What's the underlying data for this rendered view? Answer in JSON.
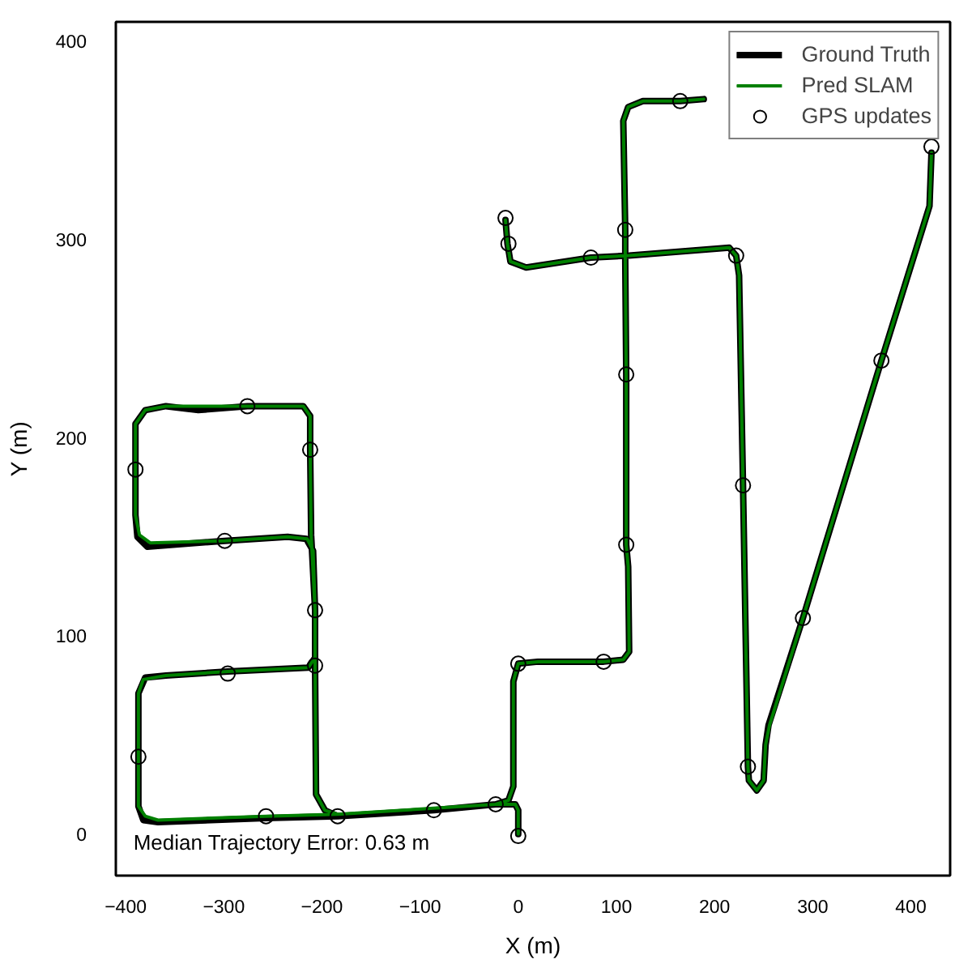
{
  "chart_data": {
    "type": "line",
    "xlabel": "X (m)",
    "ylabel": "Y (m)",
    "xlim": [
      -410,
      440
    ],
    "ylim": [
      -21,
      410
    ],
    "xticks": [
      {
        "value": -400,
        "label": "−400"
      },
      {
        "value": -300,
        "label": "−300"
      },
      {
        "value": -200,
        "label": "−200"
      },
      {
        "value": -100,
        "label": "−100"
      },
      0,
      100,
      200,
      300,
      400
    ],
    "yticks": [
      0,
      100,
      200,
      300,
      400
    ],
    "legend": "top right",
    "annotations": [
      "Median Trajectory Error: 0.63 m"
    ],
    "series": [
      {
        "name": "Ground Truth",
        "color": "#000000",
        "x": [
          0,
          0,
          -3,
          -23,
          -86,
          -184,
          -257,
          -367,
          -382,
          -387,
          -387,
          -387,
          -380,
          -359,
          -296,
          -214,
          -207,
          -207,
          -209,
          -216,
          -235,
          -299,
          -378,
          -388,
          -390,
          -390,
          -390,
          -380,
          -359,
          -326,
          -276,
          -219,
          -212,
          -212,
          -211,
          -207,
          -207,
          -206,
          -197,
          -184,
          -86,
          -23,
          -10,
          -5,
          -5,
          0,
          20,
          87,
          107,
          113,
          112,
          110,
          110,
          109,
          109,
          107,
          112,
          127,
          165,
          189,
          null,
          421,
          419,
          414,
          370,
          290,
          255,
          252,
          250,
          243,
          235,
          234,
          229,
          225,
          222,
          215,
          113,
          74,
          8,
          -8,
          -11,
          -13
        ],
        "values": [
          0,
          12,
          15,
          15,
          12,
          9,
          8,
          6,
          7,
          14,
          39,
          71,
          79,
          80,
          82,
          84,
          89,
          113,
          143,
          149,
          150,
          148,
          145,
          150,
          161,
          184,
          207,
          214,
          216,
          214,
          216,
          216,
          211,
          194,
          151,
          113,
          85,
          20,
          12,
          9,
          12,
          15,
          17,
          24,
          77,
          86,
          87,
          87,
          88,
          92,
          135,
          146,
          232,
          290,
          305,
          360,
          367,
          370,
          370,
          371,
          null,
          344,
          317,
          309,
          239,
          109,
          55,
          45,
          27,
          22,
          27,
          34,
          176,
          282,
          292,
          296,
          292,
          291,
          286,
          289,
          298,
          310
        ]
      },
      {
        "name": "Pred SLAM",
        "color": "#008000",
        "x": [
          0,
          0,
          -3,
          -23,
          -86,
          -184,
          -257,
          -367,
          -380,
          -387,
          -387,
          -387,
          -382,
          -359,
          -296,
          -214,
          -207,
          -207,
          -209,
          -215,
          -235,
          -299,
          -375,
          -386,
          -390,
          -390,
          -390,
          -380,
          -359,
          -326,
          -276,
          -219,
          -212,
          -212,
          -211,
          -207,
          -207,
          -206,
          -197,
          -184,
          -86,
          -23,
          -10,
          -5,
          -5,
          0,
          20,
          87,
          107,
          113,
          112,
          110,
          110,
          109,
          109,
          107,
          112,
          127,
          165,
          189,
          null,
          421,
          419,
          414,
          370,
          290,
          256,
          252,
          250,
          243,
          235,
          234,
          229,
          225,
          222,
          215,
          113,
          74,
          8,
          -8,
          -11,
          -13
        ],
        "values": [
          0,
          12,
          15,
          15,
          13,
          10,
          9,
          7,
          9,
          14,
          39,
          71,
          78,
          80,
          82,
          84,
          89,
          113,
          143,
          149,
          150,
          148,
          147,
          151,
          161,
          184,
          207,
          214,
          216,
          216,
          216,
          216,
          211,
          194,
          151,
          113,
          85,
          20,
          12,
          10,
          13,
          15,
          17,
          24,
          77,
          86,
          87,
          87,
          88,
          92,
          135,
          146,
          232,
          290,
          305,
          360,
          367,
          370,
          370,
          371,
          null,
          344,
          317,
          309,
          239,
          109,
          55,
          45,
          27,
          22,
          27,
          34,
          176,
          282,
          292,
          296,
          292,
          291,
          286,
          289,
          298,
          310
        ]
      },
      {
        "name": "GPS updates",
        "type": "scatter",
        "marker": "circle",
        "color": "#000000",
        "x": [
          0,
          -23,
          -86,
          -184,
          -257,
          -387,
          -296,
          -207,
          -207,
          -299,
          -390,
          -276,
          -212,
          0,
          87,
          110,
          110,
          109,
          165,
          421,
          370,
          290,
          234,
          229,
          222,
          74,
          -10,
          -13
        ],
        "values": [
          -1,
          15,
          12,
          9,
          9,
          39,
          81,
          85,
          113,
          148,
          184,
          216,
          194,
          86,
          87,
          146,
          232,
          305,
          370,
          347,
          239,
          109,
          34,
          176,
          292,
          291,
          298,
          311
        ]
      }
    ]
  }
}
